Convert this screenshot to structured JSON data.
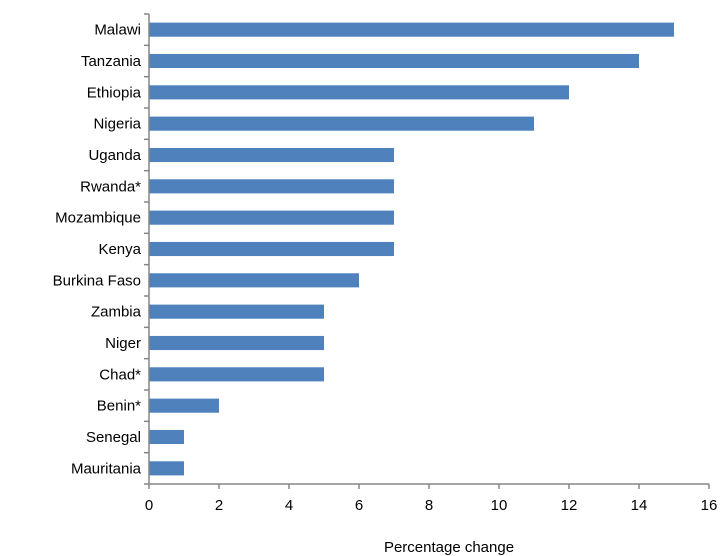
{
  "chart_data": {
    "type": "bar",
    "orientation": "horizontal",
    "categories": [
      "Malawi",
      "Tanzania",
      "Ethiopia",
      "Nigeria",
      "Uganda",
      "Rwanda*",
      "Mozambique",
      "Kenya",
      "Burkina Faso",
      "Zambia",
      "Niger",
      "Chad*",
      "Benin*",
      "Senegal",
      "Mauritania"
    ],
    "values": [
      15,
      14,
      12,
      11,
      7,
      7,
      7,
      7,
      6,
      5,
      5,
      5,
      2,
      1,
      1
    ],
    "xlabel": "Percentage change",
    "ylabel": "",
    "xlim": [
      0,
      16
    ],
    "xticks": [
      "0",
      "2",
      "4",
      "6",
      "8",
      "10",
      "12",
      "14",
      "16"
    ],
    "grid": false,
    "legend": "none",
    "bar_color": "#4f81bd",
    "axis_color": "#868686"
  }
}
